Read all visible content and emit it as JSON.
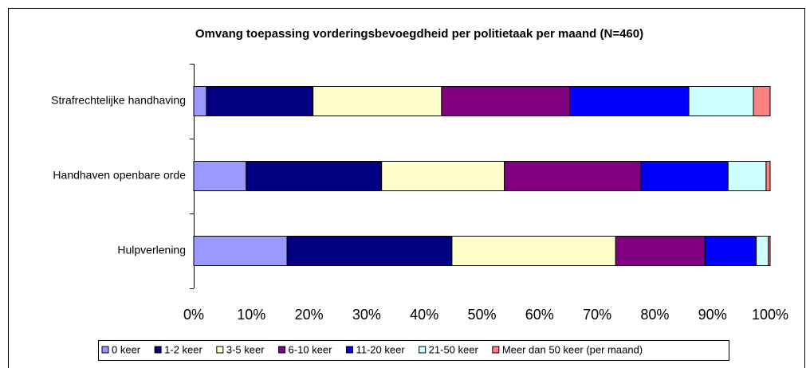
{
  "chart_data": {
    "type": "stacked-bar-horizontal",
    "title": "Omvang toepassing vorderingsbevoegdheid per politietaak per maand (N=460)",
    "categories": [
      "Strafrechtelijke handhaving",
      "Handhaven openbare orde",
      "Hulpverlening"
    ],
    "series": [
      {
        "name": "0 keer",
        "color": "#9999ff",
        "values": [
          2.2,
          9.1,
          16.2
        ]
      },
      {
        "name": "1-2 keer",
        "color": "#000080",
        "values": [
          18.5,
          23.5,
          28.6
        ]
      },
      {
        "name": "3-5 keer",
        "color": "#ffffcc",
        "values": [
          22.3,
          21.3,
          28.4
        ]
      },
      {
        "name": "6-10 keer",
        "color": "#800080",
        "values": [
          22.3,
          23.7,
          15.5
        ]
      },
      {
        "name": "11-20 keer",
        "color": "#0000ff",
        "values": [
          20.6,
          15.1,
          8.9
        ]
      },
      {
        "name": "21-50 keer",
        "color": "#ccffff",
        "values": [
          11.2,
          6.6,
          2.1
        ]
      },
      {
        "name": "Meer dan 50 keer (per maand)",
        "color": "#ff8080",
        "values": [
          2.9,
          0.7,
          0.3
        ]
      }
    ],
    "xlim": [
      0,
      100
    ],
    "xticks": [
      {
        "value": 0,
        "label": "0%"
      },
      {
        "value": 10,
        "label": "10%"
      },
      {
        "value": 20,
        "label": "20%"
      },
      {
        "value": 30,
        "label": "30%"
      },
      {
        "value": 40,
        "label": "40%"
      },
      {
        "value": 50,
        "label": "50%"
      },
      {
        "value": 60,
        "label": "60%"
      },
      {
        "value": 70,
        "label": "70%"
      },
      {
        "value": 80,
        "label": "80%"
      },
      {
        "value": 90,
        "label": "90%"
      },
      {
        "value": 100,
        "label": "100%"
      }
    ],
    "legend": "bottom"
  }
}
